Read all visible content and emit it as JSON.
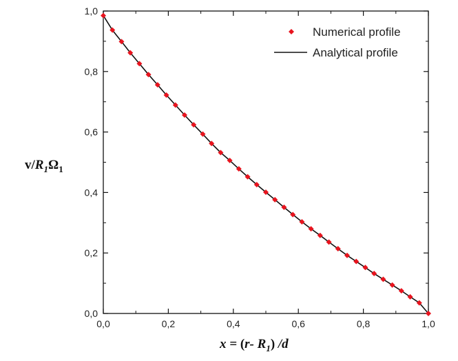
{
  "chart_data": {
    "type": "scatter",
    "xlim": [
      0,
      1
    ],
    "ylim": [
      0,
      1
    ],
    "x_ticks": [
      "0,0",
      "0,2",
      "0,4",
      "0,6",
      "0,8",
      "1,0"
    ],
    "y_ticks": [
      "0,0",
      "0,2",
      "0,4",
      "0,6",
      "0,8",
      "1,0"
    ],
    "xlabel": "x = (r- R1) /d",
    "ylabel": "v/R1Ω1",
    "grid": false,
    "legend_position": "top-right",
    "series": [
      {
        "name": "Numerical profile",
        "kind": "points",
        "color": "#e8141e",
        "marker": "diamond",
        "x": [
          0.0,
          0.028,
          0.056,
          0.083,
          0.111,
          0.139,
          0.167,
          0.194,
          0.222,
          0.25,
          0.278,
          0.306,
          0.333,
          0.361,
          0.389,
          0.417,
          0.444,
          0.472,
          0.5,
          0.528,
          0.556,
          0.583,
          0.611,
          0.639,
          0.667,
          0.694,
          0.722,
          0.75,
          0.778,
          0.806,
          0.833,
          0.861,
          0.889,
          0.917,
          0.944,
          0.972,
          1.0
        ],
        "y": [
          0.985,
          0.937,
          0.899,
          0.862,
          0.826,
          0.79,
          0.756,
          0.722,
          0.689,
          0.656,
          0.624,
          0.593,
          0.562,
          0.532,
          0.506,
          0.478,
          0.452,
          0.426,
          0.401,
          0.376,
          0.351,
          0.327,
          0.303,
          0.28,
          0.258,
          0.236,
          0.214,
          0.192,
          0.172,
          0.152,
          0.132,
          0.113,
          0.094,
          0.075,
          0.055,
          0.035,
          0.0
        ]
      },
      {
        "name": "Analytical profile",
        "kind": "line",
        "color": "#111111",
        "x": [
          0.0,
          0.028,
          0.056,
          0.083,
          0.111,
          0.139,
          0.167,
          0.194,
          0.222,
          0.25,
          0.278,
          0.306,
          0.333,
          0.361,
          0.389,
          0.417,
          0.444,
          0.472,
          0.5,
          0.528,
          0.556,
          0.583,
          0.611,
          0.639,
          0.667,
          0.694,
          0.722,
          0.75,
          0.778,
          0.806,
          0.833,
          0.861,
          0.889,
          0.917,
          0.944,
          0.972,
          1.0
        ],
        "y": [
          0.985,
          0.937,
          0.899,
          0.862,
          0.826,
          0.79,
          0.756,
          0.722,
          0.689,
          0.656,
          0.624,
          0.593,
          0.562,
          0.532,
          0.506,
          0.478,
          0.452,
          0.426,
          0.401,
          0.376,
          0.351,
          0.327,
          0.303,
          0.28,
          0.258,
          0.236,
          0.214,
          0.192,
          0.172,
          0.152,
          0.132,
          0.113,
          0.094,
          0.075,
          0.055,
          0.035,
          0.0
        ]
      }
    ]
  }
}
